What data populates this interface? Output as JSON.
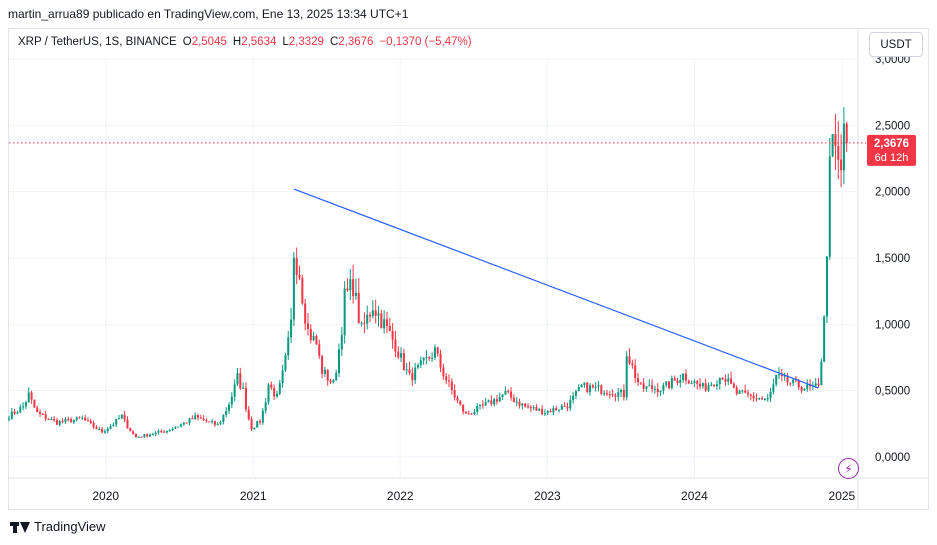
{
  "header": {
    "publisher_line": "martin_arrua89 publicado en TradingView.com, Ene 13, 2025 13:34 UTC+1"
  },
  "legend": {
    "symbol": "XRP / TetherUS, 1S, BINANCE",
    "open_label": "O",
    "open": "2,5045",
    "high_label": "H",
    "high": "2,5634",
    "low_label": "L",
    "low": "2,3329",
    "close_label": "C",
    "close": "2,3676",
    "change": "−0,1370 (−5,47%)"
  },
  "toolbar": {
    "currency_label": "USDT"
  },
  "price_marker": {
    "price": "2,3676",
    "countdown": "6d 12h"
  },
  "footer": {
    "brand": "TradingView"
  },
  "icons": {
    "alert": "lightning-icon",
    "logo": "tradingview-logo-icon"
  },
  "colors": {
    "up": "#089981",
    "down": "#f23645",
    "trendline": "#2962ff",
    "grid": "#f0f3fa",
    "last_price_line": "#f23645"
  },
  "chart_data": {
    "type": "candlestick",
    "title": "XRP / TetherUS, 1S, BINANCE",
    "xlabel": "",
    "ylabel": "",
    "x_tick_labels": [
      "2020",
      "2021",
      "2022",
      "2023",
      "2024",
      "2025"
    ],
    "y_tick_labels": [
      "0,0000",
      "0,5000",
      "1,0000",
      "1,5000",
      "2,0000",
      "2,5000",
      "3,0000"
    ],
    "y_ticks": [
      0,
      0.5,
      1.0,
      1.5,
      2.0,
      2.5,
      3.0
    ],
    "ylim": [
      -0.12,
      3.0
    ],
    "xlim": [
      "2019-05-06",
      "2025-02-10"
    ],
    "grid": true,
    "last_price": 2.3676,
    "anchors": [
      [
        "2019-05-06",
        0.31
      ],
      [
        "2019-06-10",
        0.38
      ],
      [
        "2019-06-24",
        0.47
      ],
      [
        "2019-07-15",
        0.33
      ],
      [
        "2019-09-02",
        0.26
      ],
      [
        "2019-11-04",
        0.29
      ],
      [
        "2019-12-23",
        0.19
      ],
      [
        "2020-02-10",
        0.31
      ],
      [
        "2020-03-16",
        0.15
      ],
      [
        "2020-06-01",
        0.2
      ],
      [
        "2020-08-10",
        0.3
      ],
      [
        "2020-10-05",
        0.24
      ],
      [
        "2020-11-23",
        0.6
      ],
      [
        "2020-12-07",
        0.5
      ],
      [
        "2020-12-28",
        0.22
      ],
      [
        "2021-01-18",
        0.27
      ],
      [
        "2021-02-08",
        0.55
      ],
      [
        "2021-03-01",
        0.45
      ],
      [
        "2021-04-05",
        1.0
      ],
      [
        "2021-04-12",
        1.55
      ],
      [
        "2021-04-26",
        1.4
      ],
      [
        "2021-05-17",
        0.95
      ],
      [
        "2021-06-07",
        0.85
      ],
      [
        "2021-06-21",
        0.65
      ],
      [
        "2021-07-19",
        0.55
      ],
      [
        "2021-08-16",
        1.2
      ],
      [
        "2021-09-06",
        1.3
      ],
      [
        "2021-09-27",
        0.95
      ],
      [
        "2021-10-25",
        1.15
      ],
      [
        "2021-11-22",
        1.0
      ],
      [
        "2021-12-20",
        0.85
      ],
      [
        "2022-01-24",
        0.6
      ],
      [
        "2022-03-28",
        0.8
      ],
      [
        "2022-05-09",
        0.5
      ],
      [
        "2022-06-13",
        0.32
      ],
      [
        "2022-09-19",
        0.48
      ],
      [
        "2022-11-07",
        0.38
      ],
      [
        "2022-12-26",
        0.34
      ],
      [
        "2023-02-20",
        0.39
      ],
      [
        "2023-03-27",
        0.53
      ],
      [
        "2023-06-05",
        0.5
      ],
      [
        "2023-07-10",
        0.47
      ],
      [
        "2023-07-17",
        0.8
      ],
      [
        "2023-08-21",
        0.52
      ],
      [
        "2023-10-16",
        0.52
      ],
      [
        "2023-12-04",
        0.62
      ],
      [
        "2024-01-22",
        0.52
      ],
      [
        "2024-03-11",
        0.62
      ],
      [
        "2024-04-15",
        0.48
      ],
      [
        "2024-07-01",
        0.43
      ],
      [
        "2024-07-22",
        0.6
      ],
      [
        "2024-09-02",
        0.55
      ],
      [
        "2024-10-07",
        0.52
      ],
      [
        "2024-11-04",
        0.52
      ],
      [
        "2024-11-11",
        0.75
      ],
      [
        "2024-11-18",
        1.1
      ],
      [
        "2024-11-25",
        1.45
      ],
      [
        "2024-12-02",
        2.4
      ],
      [
        "2024-12-09",
        2.3
      ],
      [
        "2024-12-16",
        2.25
      ],
      [
        "2024-12-23",
        2.2
      ],
      [
        "2024-12-30",
        2.1
      ],
      [
        "2025-01-06",
        2.5
      ],
      [
        "2025-01-13",
        2.3676
      ]
    ],
    "annotations": [
      {
        "type": "trendline",
        "from": [
          "2021-04-12",
          2.02
        ],
        "to": [
          "2024-11-04",
          0.52
        ]
      }
    ]
  }
}
